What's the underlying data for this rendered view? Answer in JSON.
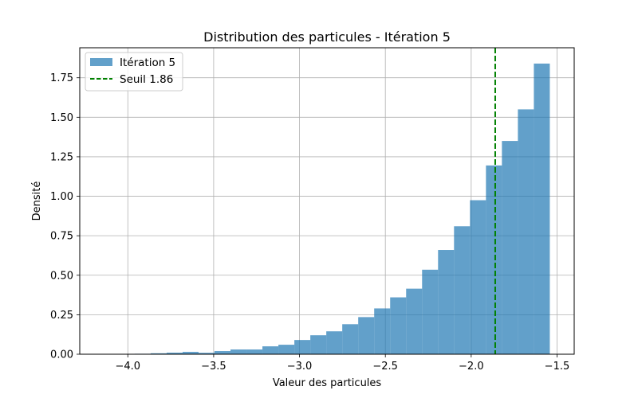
{
  "chart_data": {
    "type": "bar",
    "title": "Distribution des particules - Itération 5",
    "xlabel": "Valeur des particules",
    "ylabel": "Densité",
    "xlim": [
      -4.28,
      -1.4
    ],
    "ylim": [
      0,
      1.94
    ],
    "grid": true,
    "legend_position": "top-left",
    "xticks": [
      -4.0,
      -3.5,
      -3.0,
      -2.5,
      -2.0,
      -1.5
    ],
    "xtick_labels": [
      "−4.0",
      "−3.5",
      "−3.0",
      "−2.5",
      "−2.0",
      "−1.5"
    ],
    "yticks": [
      0,
      0.25,
      0.5,
      0.75,
      1.0,
      1.25,
      1.5,
      1.75
    ],
    "ytick_labels": [
      "0.00",
      "0.25",
      "0.50",
      "0.75",
      "1.00",
      "1.25",
      "1.50",
      "1.75"
    ],
    "bin_edges": [
      -3.96,
      -3.867,
      -3.774,
      -3.681,
      -3.588,
      -3.495,
      -3.402,
      -3.309,
      -3.216,
      -3.123,
      -3.03,
      -2.937,
      -2.844,
      -2.751,
      -2.658,
      -2.565,
      -2.472,
      -2.379,
      -2.286,
      -2.193,
      -2.1,
      -2.007,
      -1.914,
      -1.821,
      -1.728,
      -1.635,
      -1.542
    ],
    "series": [
      {
        "name": "Itération 5",
        "color": "#1f77b4",
        "opacity": 0.7,
        "values": [
          0.003,
          0.006,
          0.01,
          0.015,
          0.009,
          0.02,
          0.03,
          0.03,
          0.05,
          0.06,
          0.09,
          0.12,
          0.145,
          0.19,
          0.235,
          0.29,
          0.36,
          0.415,
          0.535,
          0.66,
          0.81,
          0.975,
          1.195,
          1.35,
          1.55,
          1.84
        ]
      }
    ],
    "threshold": {
      "name": "Seuil 1.86",
      "x": -1.86,
      "color": "#008000",
      "style": "dashed"
    }
  }
}
